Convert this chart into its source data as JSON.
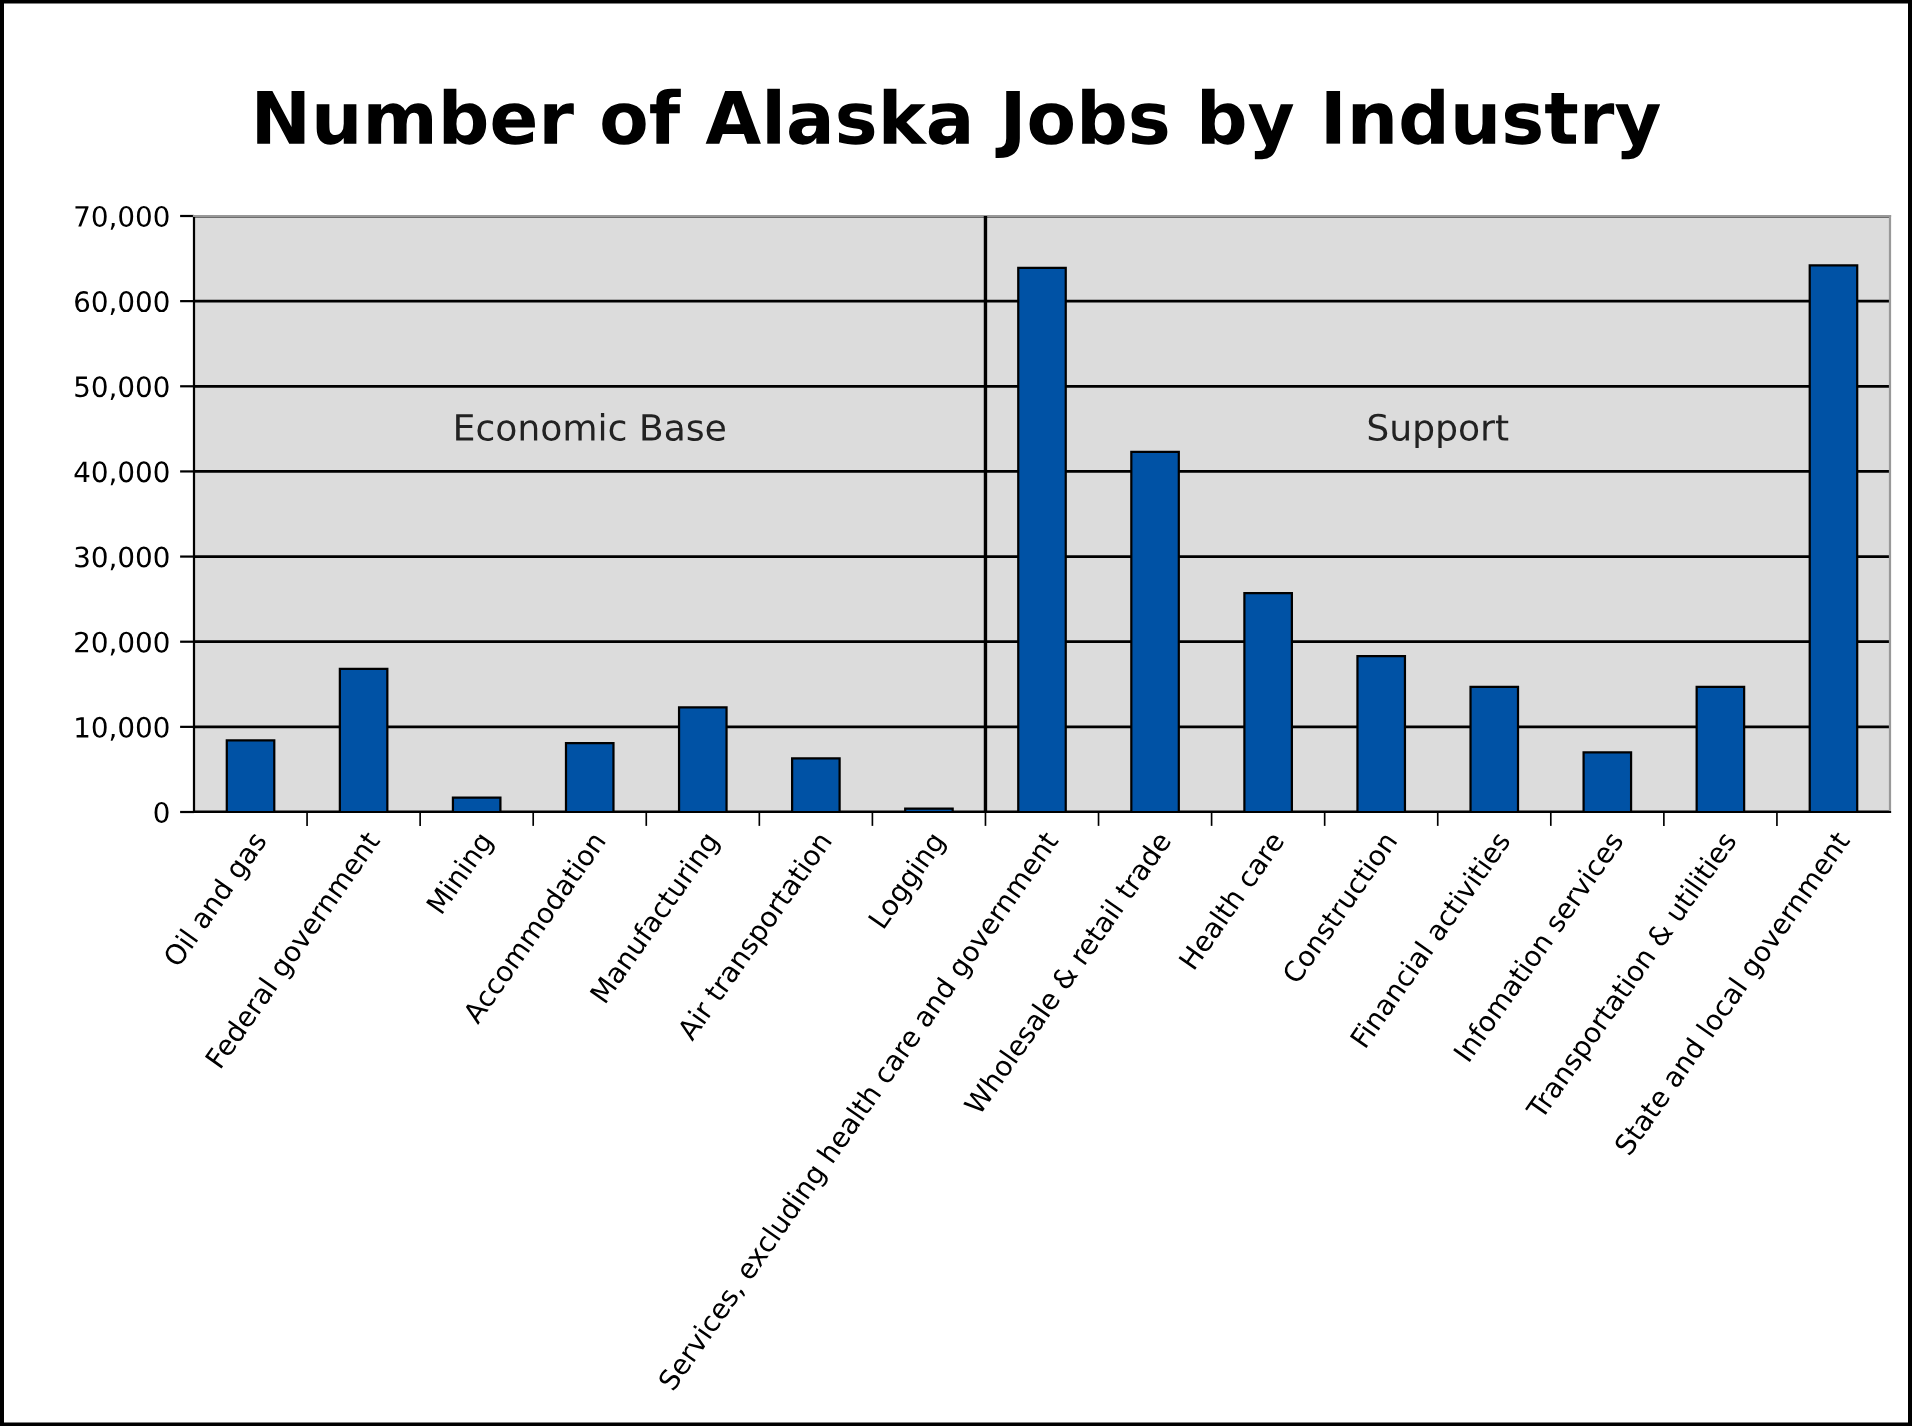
{
  "chart_data": {
    "type": "bar",
    "title": "Number of Alaska Jobs by Industry",
    "categories": [
      "Oil and gas",
      "Federal government",
      "Mining",
      "Accommodation",
      "Manufacturing",
      "Air transportation",
      "Logging",
      "Services, excluding health care and government",
      "Wholesale & retail trade",
      "Health care",
      "Construction",
      "Financial activities",
      "Infomation services",
      "Transportation & utilities",
      "State and local government"
    ],
    "values": [
      8400,
      16800,
      1700,
      8100,
      12300,
      6300,
      400,
      63900,
      42300,
      25700,
      18300,
      14700,
      7000,
      14700,
      64200
    ],
    "color": "#0052a5",
    "ylim": [
      0,
      70000
    ],
    "yticks": [
      {
        "value": 0,
        "label": "0"
      },
      {
        "value": 10000,
        "label": "10,000"
      },
      {
        "value": 20000,
        "label": "20,000"
      },
      {
        "value": 30000,
        "label": "30,000"
      },
      {
        "value": 40000,
        "label": "40,000"
      },
      {
        "value": 50000,
        "label": "50,000"
      },
      {
        "value": 60000,
        "label": "60,000"
      },
      {
        "value": 70000,
        "label": "70,000"
      }
    ],
    "grid": "y",
    "annotations": [
      "Economic Base",
      "Support"
    ]
  }
}
